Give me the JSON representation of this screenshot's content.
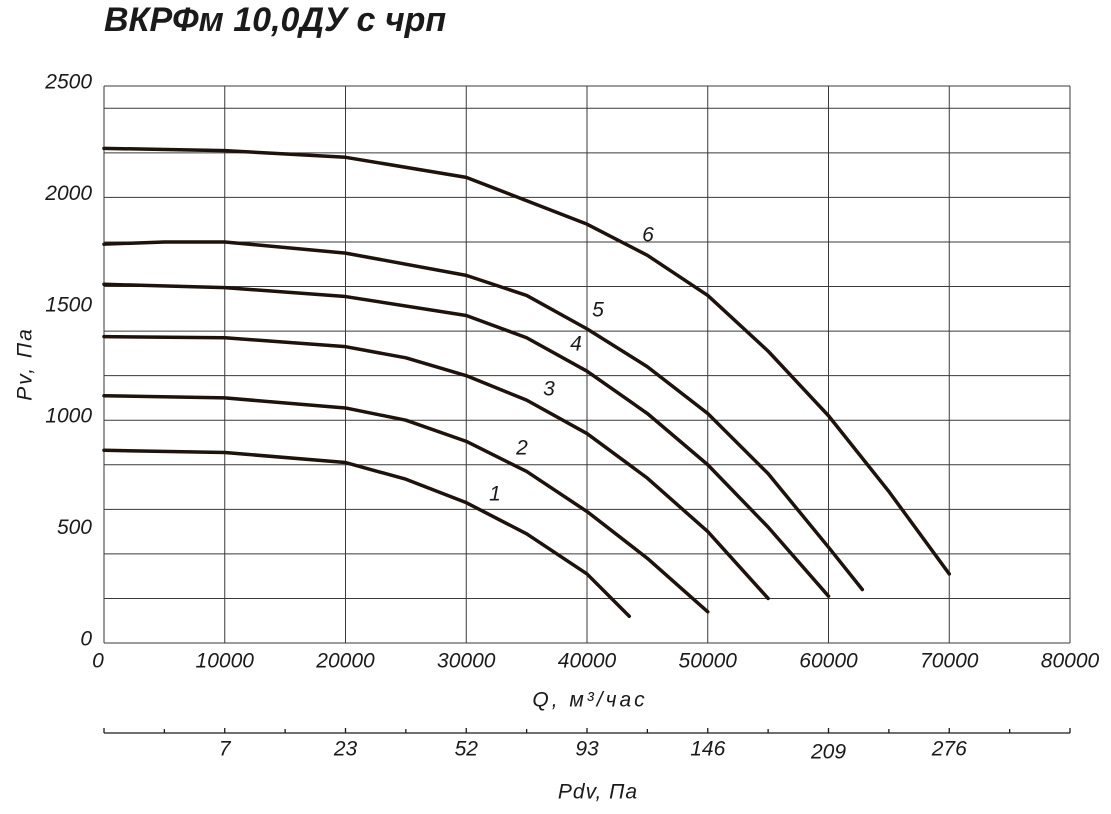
{
  "chart_data": {
    "type": "line",
    "title": "ВКРФм 10,0ДУ с чрп",
    "xlabel": "Q, м³/час",
    "ylabel": "Pv, Па",
    "xlim": [
      0,
      80000
    ],
    "xticks": [
      0,
      10000,
      20000,
      30000,
      40000,
      50000,
      60000,
      70000,
      80000
    ],
    "ylim": [
      0,
      2500
    ],
    "yticks": [
      0,
      500,
      1000,
      1500,
      2000,
      2500
    ],
    "ygrid": [
      0,
      200,
      400,
      600,
      800,
      1000,
      1200,
      1400,
      1600,
      1800,
      2000,
      2200,
      2400,
      2500
    ],
    "grid": true,
    "color": "#1e120c",
    "series": [
      {
        "name": "1",
        "x": [
          0,
          10000,
          20000,
          25000,
          30000,
          35000,
          40000,
          43500
        ],
        "values": [
          865,
          855,
          810,
          735,
          630,
          490,
          310,
          120
        ]
      },
      {
        "name": "2",
        "x": [
          0,
          10000,
          20000,
          25000,
          30000,
          35000,
          40000,
          45000,
          50000
        ],
        "values": [
          1110,
          1100,
          1055,
          1000,
          905,
          770,
          590,
          380,
          140
        ]
      },
      {
        "name": "3",
        "x": [
          0,
          10000,
          20000,
          25000,
          30000,
          35000,
          40000,
          45000,
          50000,
          55000
        ],
        "values": [
          1375,
          1370,
          1330,
          1280,
          1200,
          1090,
          940,
          740,
          500,
          200
        ]
      },
      {
        "name": "4",
        "x": [
          0,
          10000,
          20000,
          30000,
          35000,
          40000,
          45000,
          50000,
          55000,
          60000
        ],
        "values": [
          1610,
          1595,
          1555,
          1470,
          1370,
          1220,
          1030,
          800,
          520,
          210
        ]
      },
      {
        "name": "5",
        "x": [
          0,
          5000,
          10000,
          20000,
          30000,
          35000,
          40000,
          45000,
          50000,
          55000,
          60000,
          62800
        ],
        "values": [
          1790,
          1800,
          1800,
          1750,
          1650,
          1560,
          1410,
          1240,
          1030,
          760,
          430,
          240
        ]
      },
      {
        "name": "6",
        "x": [
          0,
          10000,
          20000,
          30000,
          40000,
          45000,
          50000,
          55000,
          60000,
          65000,
          70000
        ],
        "values": [
          2220,
          2210,
          2180,
          2090,
          1880,
          1740,
          1560,
          1310,
          1020,
          680,
          310
        ]
      }
    ],
    "pdv_axis": {
      "label": "Pdv, Па",
      "q": [
        10000,
        20000,
        30000,
        40000,
        50000,
        60000,
        70000
      ],
      "values": [
        7,
        23,
        52,
        93,
        146,
        209,
        276
      ]
    }
  }
}
